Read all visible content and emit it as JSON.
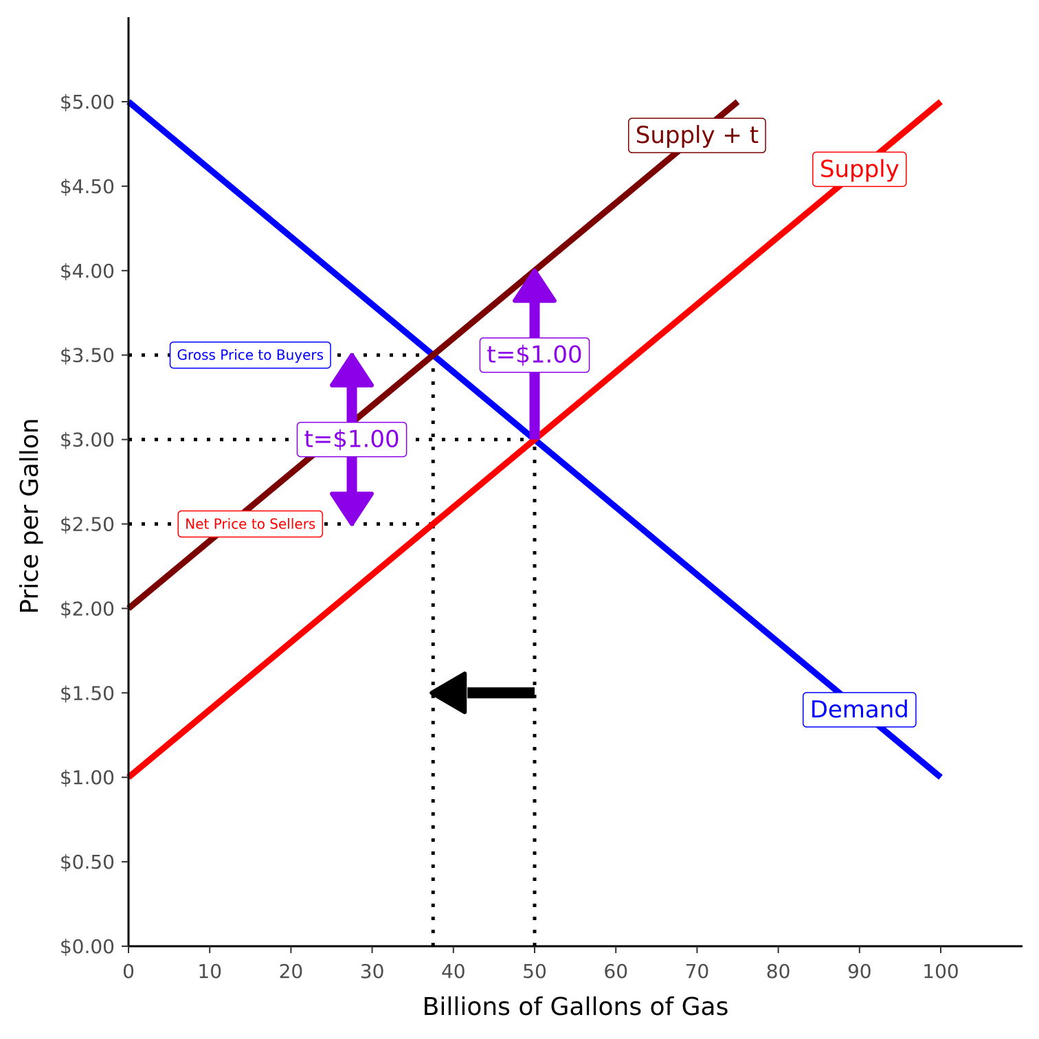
{
  "chart_data": {
    "type": "line",
    "title": "",
    "xlabel": "Billions of Gallons of Gas",
    "ylabel": "Price per Gallon",
    "xlim": [
      0,
      110
    ],
    "ylim": [
      0,
      5.5
    ],
    "x_ticks": [
      0,
      10,
      20,
      30,
      40,
      50,
      60,
      70,
      80,
      90,
      100
    ],
    "x_tick_labels": [
      "0",
      "10",
      "20",
      "30",
      "40",
      "50",
      "60",
      "70",
      "80",
      "90",
      "100"
    ],
    "y_ticks": [
      0,
      0.5,
      1,
      1.5,
      2,
      2.5,
      3,
      3.5,
      4,
      4.5,
      5
    ],
    "y_tick_labels": [
      "$0.00",
      "$0.50",
      "$1.00",
      "$1.50",
      "$2.00",
      "$2.50",
      "$3.00",
      "$3.50",
      "$4.00",
      "$4.50",
      "$5.00"
    ],
    "grid": false,
    "series": [
      {
        "name": "Demand",
        "color": "#0000ff",
        "points": [
          [
            0,
            5
          ],
          [
            100,
            1
          ]
        ]
      },
      {
        "name": "Supply",
        "color": "#ff0000",
        "points": [
          [
            0,
            1
          ],
          [
            100,
            5
          ]
        ]
      },
      {
        "name": "Supply + t",
        "color": "#7b0000",
        "points": [
          [
            0,
            2
          ],
          [
            75,
            5
          ]
        ]
      }
    ],
    "curve_labels": [
      {
        "text": "Demand",
        "color": "#0000ff",
        "x": 90,
        "y": 1.4
      },
      {
        "text": "Supply",
        "color": "#ff0000",
        "x": 90,
        "y": 4.6
      },
      {
        "text": "Supply + t",
        "color": "#7b0000",
        "x": 70,
        "y": 4.8
      }
    ],
    "guides": [
      {
        "type": "h",
        "y": 3.5,
        "x_from": 0,
        "x_to": 37.5
      },
      {
        "type": "h",
        "y": 3.0,
        "x_from": 0,
        "x_to": 50
      },
      {
        "type": "h",
        "y": 2.5,
        "x_from": 0,
        "x_to": 37.5
      },
      {
        "type": "v",
        "x": 37.5,
        "y_from": 0,
        "y_to": 3.5
      },
      {
        "type": "v",
        "x": 50,
        "y_from": 0,
        "y_to": 3.0
      }
    ],
    "price_labels": [
      {
        "text": "Gross Price to Buyers",
        "color": "#0000ff",
        "x": 15,
        "y": 3.5
      },
      {
        "text": "Net Price to Sellers",
        "color": "#ff0000",
        "x": 15,
        "y": 2.5
      }
    ],
    "tax_arrows": [
      {
        "kind": "up",
        "x": 50,
        "y_from": 3.0,
        "y_to": 4.0,
        "color": "#8b00e8",
        "label": "t=$1.00",
        "label_y": 3.5
      },
      {
        "kind": "double",
        "x": 27.5,
        "y_from": 2.5,
        "y_to": 3.5,
        "color": "#8b00e8",
        "label": "t=$1.00",
        "label_y": 3.0
      }
    ],
    "shift_arrow": {
      "x_from": 50,
      "x_to": 37.5,
      "y": 1.5,
      "color": "#000000"
    }
  }
}
